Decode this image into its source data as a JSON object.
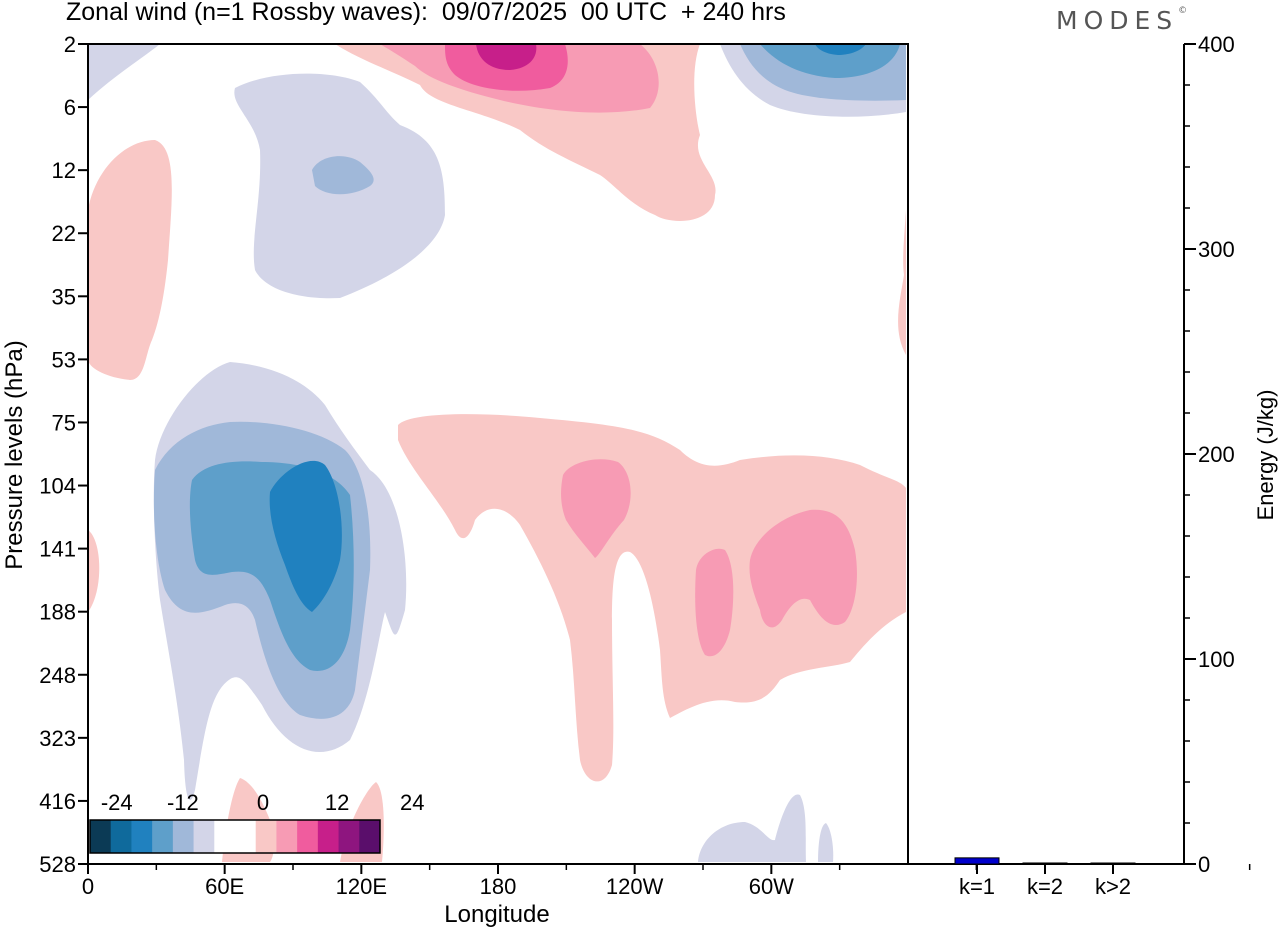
{
  "title": "Zonal wind (n=1 Rossby waves):  09/07/2025  00 UTC  + 240 hrs",
  "logo": "MODES",
  "logo_mark": "©",
  "chart_data": [
    {
      "type": "heatmap",
      "title": "Zonal wind (n=1 Rossby waves):  09/07/2025  00 UTC  + 240 hrs",
      "xlabel": "Longitude",
      "ylabel": "Pressure levels (hPa)",
      "x_ticks": [
        "0",
        "60E",
        "120E",
        "180",
        "120W",
        "60W"
      ],
      "y_ticks": [
        "2",
        "6",
        "12",
        "22",
        "35",
        "53",
        "75",
        "104",
        "141",
        "188",
        "248",
        "323",
        "416",
        "528"
      ],
      "colorbar": {
        "labels": [
          "-24",
          "-12",
          "0",
          "12",
          "24"
        ],
        "colors": [
          "#0b3a55",
          "#0f6a9c",
          "#2081bf",
          "#5e9fca",
          "#a0b8d9",
          "#d3d5e8",
          "#ffffff",
          "#ffffff",
          "#f9c8c6",
          "#f79bb4",
          "#f05c9e",
          "#c71f8a",
          "#8e157f",
          "#5a0e6b"
        ]
      },
      "regions": [
        {
          "sign": "negative",
          "level": 1,
          "lon": [
            30,
            128
          ],
          "pressure": [
            60,
            320
          ],
          "note": "main negative core below 100 hPa"
        },
        {
          "sign": "negative",
          "level": 3,
          "lon": [
            80,
            112
          ],
          "pressure": [
            110,
            190
          ]
        },
        {
          "sign": "negative",
          "level": 1,
          "lon": [
            68,
            150
          ],
          "pressure": [
            4,
            33
          ]
        },
        {
          "sign": "positive",
          "level": 1,
          "lon": [
            140,
            360
          ],
          "pressure": [
            70,
            380
          ]
        },
        {
          "sign": "positive",
          "level": 2,
          "lon": [
            270,
            340
          ],
          "pressure": [
            118,
            220
          ]
        },
        {
          "sign": "positive",
          "level": 3,
          "lon": [
            175,
            195
          ],
          "pressure": [
            2,
            4
          ]
        },
        {
          "sign": "positive",
          "level": 1,
          "lon": [
            0,
            40
          ],
          "pressure": [
            9,
            50
          ]
        }
      ]
    },
    {
      "type": "bar",
      "categories": [
        "k=1",
        "k=2",
        "k>2"
      ],
      "values": [
        3,
        0.5,
        0.3
      ],
      "ylabel": "Energy (J/kg)",
      "ylim": [
        0,
        400
      ],
      "y_ticks": [
        "0",
        "100",
        "200",
        "300",
        "400"
      ],
      "colors": [
        "#0000cc",
        "#000000",
        "#000000"
      ]
    }
  ]
}
